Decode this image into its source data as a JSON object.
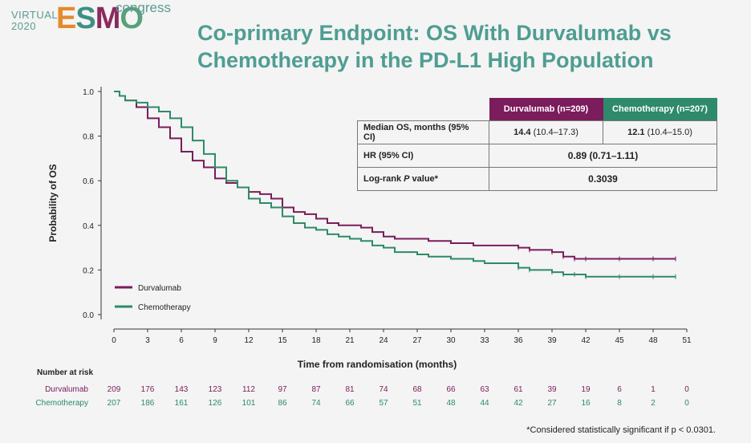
{
  "logo": {
    "virtual": "VIRTUAL",
    "year": "2020",
    "esmo": [
      "E",
      "S",
      "M",
      "O"
    ],
    "congress": "congress"
  },
  "title": "Co-primary Endpoint: OS With Durvalumab vs Chemotherapy in the PD-L1 High Population",
  "table": {
    "col1": "Durvalumab (n=209)",
    "col2": "Chemotherapy (n=207)",
    "row1_label": "Median OS, months (95% CI)",
    "row1_v1_bold": "14.4",
    "row1_v1_rest": " (10.4–17.3)",
    "row1_v2_bold": "12.1",
    "row1_v2_rest": " (10.4–15.0)",
    "row2_label": "HR (95% CI)",
    "row2_value": "0.89 (0.71–1.11)",
    "row3_label_pre": "Log-rank ",
    "row3_label_p": "P",
    "row3_label_post": " value*",
    "row3_value": "0.3039"
  },
  "risk": {
    "header": "Number at risk",
    "rows": [
      {
        "label": "Durvalumab",
        "values": [
          209,
          176,
          143,
          123,
          112,
          97,
          87,
          81,
          74,
          68,
          66,
          63,
          61,
          39,
          19,
          6,
          1,
          0
        ]
      },
      {
        "label": "Chemotherapy",
        "values": [
          207,
          186,
          161,
          126,
          101,
          86,
          74,
          66,
          57,
          51,
          48,
          44,
          42,
          27,
          16,
          8,
          2,
          0
        ]
      }
    ]
  },
  "footnote": "*Considered statistically significant if p < 0.0301.",
  "colors": {
    "durva": "#7b1c5c",
    "chemo": "#2e8a6a",
    "teal": "#4f9d93"
  },
  "chart_data": {
    "type": "line",
    "xlabel": "Time from randomisation (months)",
    "ylabel": "Probability of OS",
    "xlim": [
      0,
      51
    ],
    "ylim": [
      0,
      1.0
    ],
    "xticks": [
      0,
      3,
      6,
      9,
      12,
      15,
      18,
      21,
      24,
      27,
      30,
      33,
      36,
      39,
      42,
      45,
      48,
      51
    ],
    "yticks": [
      "0.0",
      "0.2",
      "0.4",
      "0.6",
      "0.8",
      "1.0"
    ],
    "legend_position": "bottom-left",
    "series": [
      {
        "name": "Durvalumab",
        "color": "#7b1c5c",
        "points": [
          [
            0,
            1.0
          ],
          [
            0.5,
            0.98
          ],
          [
            1,
            0.96
          ],
          [
            2,
            0.93
          ],
          [
            3,
            0.88
          ],
          [
            4,
            0.84
          ],
          [
            5,
            0.79
          ],
          [
            6,
            0.73
          ],
          [
            7,
            0.69
          ],
          [
            8,
            0.66
          ],
          [
            9,
            0.61
          ],
          [
            10,
            0.59
          ],
          [
            11,
            0.57
          ],
          [
            12,
            0.55
          ],
          [
            13,
            0.54
          ],
          [
            14,
            0.52
          ],
          [
            15,
            0.48
          ],
          [
            16,
            0.46
          ],
          [
            17,
            0.45
          ],
          [
            18,
            0.43
          ],
          [
            19,
            0.41
          ],
          [
            20,
            0.4
          ],
          [
            21,
            0.4
          ],
          [
            22,
            0.39
          ],
          [
            23,
            0.37
          ],
          [
            24,
            0.35
          ],
          [
            25,
            0.34
          ],
          [
            27,
            0.34
          ],
          [
            28,
            0.33
          ],
          [
            30,
            0.32
          ],
          [
            32,
            0.31
          ],
          [
            33,
            0.31
          ],
          [
            34,
            0.31
          ],
          [
            36,
            0.3
          ],
          [
            37,
            0.29
          ],
          [
            39,
            0.28
          ],
          [
            40,
            0.26
          ],
          [
            41,
            0.25
          ],
          [
            42,
            0.25
          ],
          [
            45,
            0.25
          ],
          [
            48,
            0.25
          ],
          [
            50,
            0.25
          ]
        ]
      },
      {
        "name": "Chemotherapy",
        "color": "#2e8a6a",
        "points": [
          [
            0,
            1.0
          ],
          [
            0.5,
            0.98
          ],
          [
            1,
            0.96
          ],
          [
            2,
            0.95
          ],
          [
            3,
            0.93
          ],
          [
            4,
            0.91
          ],
          [
            5,
            0.88
          ],
          [
            6,
            0.84
          ],
          [
            7,
            0.78
          ],
          [
            8,
            0.72
          ],
          [
            9,
            0.66
          ],
          [
            10,
            0.6
          ],
          [
            11,
            0.57
          ],
          [
            12,
            0.52
          ],
          [
            13,
            0.5
          ],
          [
            14,
            0.48
          ],
          [
            15,
            0.44
          ],
          [
            16,
            0.41
          ],
          [
            17,
            0.39
          ],
          [
            18,
            0.38
          ],
          [
            19,
            0.36
          ],
          [
            20,
            0.35
          ],
          [
            21,
            0.34
          ],
          [
            22,
            0.33
          ],
          [
            23,
            0.31
          ],
          [
            24,
            0.3
          ],
          [
            25,
            0.28
          ],
          [
            27,
            0.27
          ],
          [
            28,
            0.26
          ],
          [
            30,
            0.25
          ],
          [
            31,
            0.25
          ],
          [
            32,
            0.24
          ],
          [
            33,
            0.23
          ],
          [
            34,
            0.23
          ],
          [
            36,
            0.21
          ],
          [
            37,
            0.2
          ],
          [
            39,
            0.19
          ],
          [
            40,
            0.18
          ],
          [
            41,
            0.18
          ],
          [
            42,
            0.17
          ],
          [
            45,
            0.17
          ],
          [
            48,
            0.17
          ],
          [
            50,
            0.17
          ]
        ]
      }
    ]
  }
}
